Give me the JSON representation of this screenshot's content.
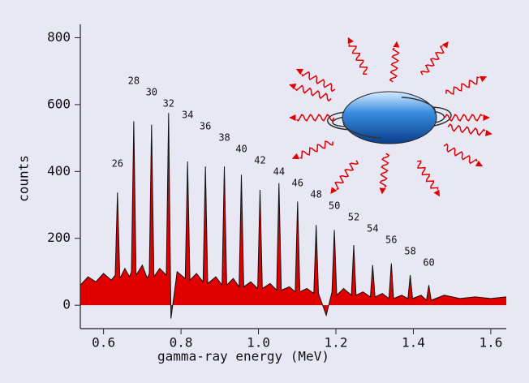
{
  "chart_data": {
    "type": "area",
    "xlabel": "gamma-ray energy (MeV)",
    "ylabel": "counts",
    "xlim": [
      0.54,
      1.64
    ],
    "ylim": [
      -70,
      840
    ],
    "xticks": [
      0.6,
      0.8,
      {
        "value": 1,
        "label": "1.0"
      },
      1.2,
      1.4,
      1.6
    ],
    "yticks": [
      0,
      200,
      400,
      600,
      800
    ],
    "series": [
      {
        "color": "#e00000",
        "x": [
          0.54,
          0.56,
          0.58,
          0.6,
          0.62,
          0.63,
          0.636,
          0.642,
          0.655,
          0.667,
          0.672,
          0.678,
          0.684,
          0.7,
          0.713,
          0.718,
          0.724,
          0.73,
          0.745,
          0.762,
          0.768,
          0.774,
          0.79,
          0.811,
          0.817,
          0.823,
          0.84,
          0.857,
          0.863,
          0.869,
          0.89,
          0.906,
          0.912,
          0.918,
          0.935,
          0.95,
          0.956,
          0.962,
          0.98,
          0.998,
          1.004,
          1.01,
          1.03,
          1.047,
          1.053,
          1.059,
          1.08,
          1.095,
          1.101,
          1.107,
          1.125,
          1.143,
          1.149,
          1.155,
          1.175,
          1.19,
          1.196,
          1.202,
          1.22,
          1.24,
          1.246,
          1.252,
          1.27,
          1.289,
          1.295,
          1.301,
          1.32,
          1.337,
          1.343,
          1.349,
          1.37,
          1.386,
          1.392,
          1.398,
          1.42,
          1.434,
          1.44,
          1.446,
          1.48,
          1.52,
          1.56,
          1.6,
          1.64
        ],
        "values": [
          60,
          85,
          70,
          95,
          75,
          90,
          337,
          80,
          110,
          85,
          100,
          550,
          90,
          120,
          80,
          95,
          540,
          85,
          110,
          90,
          575,
          -40,
          100,
          80,
          430,
          75,
          95,
          70,
          415,
          65,
          85,
          60,
          415,
          60,
          80,
          55,
          390,
          55,
          70,
          50,
          345,
          50,
          65,
          45,
          365,
          45,
          55,
          40,
          310,
          40,
          50,
          35,
          240,
          35,
          -30,
          40,
          225,
          30,
          50,
          30,
          180,
          30,
          40,
          25,
          120,
          25,
          35,
          20,
          125,
          20,
          30,
          20,
          90,
          20,
          30,
          15,
          60,
          15,
          30,
          20,
          25,
          20,
          25
        ]
      }
    ],
    "annotations": [
      {
        "text": "26",
        "x": 0.636
      },
      {
        "text": "28",
        "x": 0.678
      },
      {
        "text": "30",
        "x": 0.724
      },
      {
        "text": "32",
        "x": 0.768
      },
      {
        "text": "34",
        "x": 0.817
      },
      {
        "text": "36",
        "x": 0.863
      },
      {
        "text": "38",
        "x": 0.912
      },
      {
        "text": "40",
        "x": 0.956
      },
      {
        "text": "42",
        "x": 1.004
      },
      {
        "text": "44",
        "x": 1.053
      },
      {
        "text": "46",
        "x": 1.101
      },
      {
        "text": "48",
        "x": 1.149
      },
      {
        "text": "50",
        "x": 1.196
      },
      {
        "text": "52",
        "x": 1.246
      },
      {
        "text": "54",
        "x": 1.295
      },
      {
        "text": "56",
        "x": 1.343
      },
      {
        "text": "58",
        "x": 1.392
      },
      {
        "text": "60",
        "x": 1.44
      }
    ]
  }
}
